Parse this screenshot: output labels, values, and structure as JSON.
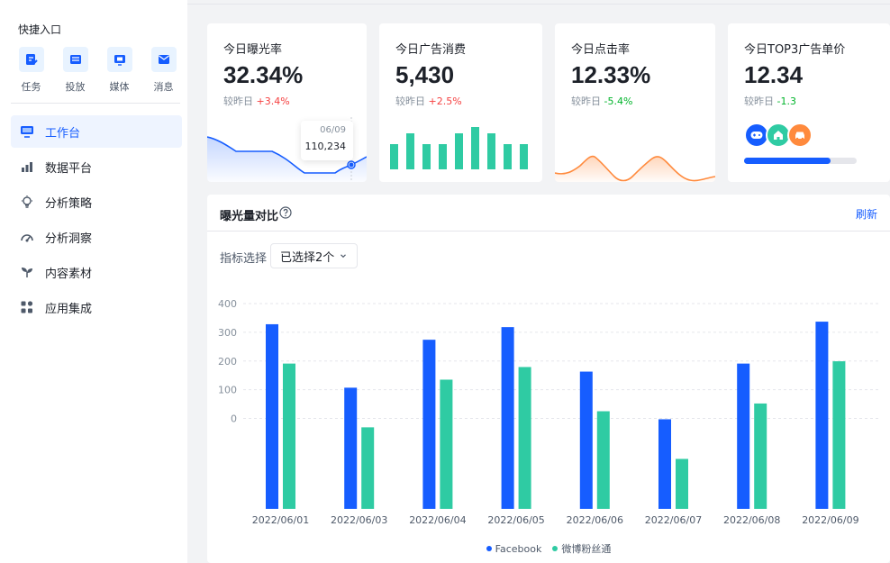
{
  "sidebar": {
    "quick_title": "快捷入口",
    "quick_items": [
      {
        "label": "任务",
        "icon": "task-edit-icon"
      },
      {
        "label": "投放",
        "icon": "delivery-icon"
      },
      {
        "label": "媒体",
        "icon": "media-icon"
      },
      {
        "label": "消息",
        "icon": "message-icon"
      }
    ],
    "menu": [
      {
        "label": "工作台",
        "icon": "monitor-icon",
        "active": true
      },
      {
        "label": "数据平台",
        "icon": "bar-chart-icon",
        "active": false
      },
      {
        "label": "分析策略",
        "icon": "bulb-icon",
        "active": false
      },
      {
        "label": "分析洞察",
        "icon": "dashboard-icon",
        "active": false
      },
      {
        "label": "内容素材",
        "icon": "sprout-icon",
        "active": false
      },
      {
        "label": "应用集成",
        "icon": "apps-icon",
        "active": false
      }
    ]
  },
  "cards": [
    {
      "title": "今日曝光率",
      "value": "32.34%",
      "compare_label": "较昨日",
      "change": "+3.4%",
      "trend": "up"
    },
    {
      "title": "今日广告消费",
      "value": "5,430",
      "compare_label": "较昨日",
      "change": "+2.5%",
      "trend": "up"
    },
    {
      "title": "今日点击率",
      "value": "12.33%",
      "compare_label": "较昨日",
      "change": "-5.4%",
      "trend": "down"
    },
    {
      "title": "今日TOP3广告单价",
      "value": "12.34",
      "compare_label": "较昨日",
      "change": "-1.3",
      "trend": "down"
    }
  ],
  "tooltip": {
    "date": "06/09",
    "value": "110,234"
  },
  "top3_progress": 0.77,
  "top3_icons": [
    "gamepad-icon",
    "home-icon",
    "car-icon"
  ],
  "colors": {
    "primary": "#165dff",
    "green": "#2fcba3",
    "orange": "#ff8a3d",
    "up": "#f53f3f",
    "down": "#00b42a"
  },
  "panel": {
    "title": "曝光量对比",
    "refresh": "刷新",
    "filter_label": "指标选择",
    "filter_value": "已选择2个"
  },
  "chart_data": {
    "type": "bar",
    "categories": [
      "2022/06/01",
      "2022/06/03",
      "2022/06/04",
      "2022/06/05",
      "2022/06/06",
      "2022/06/07",
      "2022/06/08",
      "2022/06/09"
    ],
    "series": [
      {
        "name": "Facebook",
        "values": [
          328,
          107,
          274,
          318,
          163,
          -3,
          191,
          337
        ]
      },
      {
        "name": "微博粉丝通",
        "values": [
          191,
          -31,
          135,
          179,
          25,
          -141,
          52,
          199
        ]
      }
    ],
    "yticks": [
      0,
      100,
      200,
      300,
      400
    ],
    "ylim": [
      -315,
      400
    ]
  }
}
